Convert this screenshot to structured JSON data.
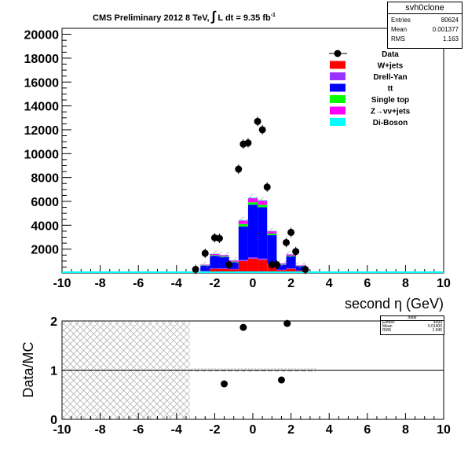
{
  "header": {
    "title_prefix": "CMS Preliminary 2012 8 TeV, ",
    "title_integral": "∫",
    "title_suffix": " L dt = 9.35 fb",
    "title_exponent": "-1"
  },
  "stats_top": {
    "name": "svh0clone",
    "rows": [
      {
        "label": "Entries",
        "value": "80624"
      },
      {
        "label": "Mean",
        "value": "0.001377"
      },
      {
        "label": "RMS",
        "value": "1.163"
      }
    ]
  },
  "stats_bottom": {
    "name": "dataf",
    "rows": [
      {
        "label": "Entries",
        "value": "4099"
      },
      {
        "label": "Mean",
        "value": "0.01400"
      },
      {
        "label": "RMS",
        "value": "1.945"
      }
    ]
  },
  "colors": {
    "wjets": "#ff0000",
    "drellyan": "#9933ff",
    "ttbar": "#0000ff",
    "singletop": "#00ff00",
    "znunu": "#ff00ff",
    "diboson": "#00ffff",
    "data": "#000000",
    "hatch": "#bbbbbb"
  },
  "chart_data": [
    {
      "type": "bar",
      "stacked": true,
      "xlabel": "second η (GeV)",
      "ylabel": "",
      "xlim": [
        -10,
        10
      ],
      "ylim": [
        0,
        20500
      ],
      "xticks": [
        -10,
        -8,
        -6,
        -4,
        -2,
        0,
        2,
        4,
        6,
        8,
        10
      ],
      "yticks": [
        2000,
        4000,
        6000,
        8000,
        10000,
        12000,
        14000,
        16000,
        18000,
        20000
      ],
      "bin_centers": [
        -2.5,
        -2.0,
        -1.5,
        -1.0,
        -0.5,
        0.0,
        0.5,
        1.0,
        1.5,
        2.0,
        2.5
      ],
      "bin_width": 0.5,
      "series": [
        {
          "name": "W+jets",
          "color_key": "wjets",
          "values": [
            150,
            350,
            350,
            300,
            1000,
            1200,
            1100,
            700,
            250,
            350,
            200
          ]
        },
        {
          "name": "Drell-Yan",
          "color_key": "drellyan",
          "values": [
            20,
            40,
            40,
            40,
            100,
            120,
            110,
            70,
            30,
            40,
            20
          ]
        },
        {
          "name": "t#bar{t}",
          "label_text": "tt",
          "color_key": "ttbar",
          "values": [
            450,
            1050,
            950,
            550,
            2800,
            4400,
            4300,
            2400,
            400,
            1000,
            350
          ]
        },
        {
          "name": "Single top",
          "color_key": "singletop",
          "values": [
            30,
            60,
            60,
            60,
            200,
            200,
            200,
            130,
            40,
            60,
            30
          ]
        },
        {
          "name": "Z→νν+jets",
          "label_text": "Z→νν+jets",
          "color_key": "znunu",
          "values": [
            40,
            100,
            100,
            100,
            300,
            350,
            350,
            200,
            80,
            100,
            40
          ]
        },
        {
          "name": "Di-Boson",
          "color_key": "diboson",
          "values": [
            10,
            20,
            20,
            20,
            40,
            50,
            50,
            30,
            20,
            20,
            10
          ]
        }
      ],
      "data": {
        "name": "Data",
        "x": [
          -3.0,
          -2.5,
          -2.0,
          -1.75,
          -1.25,
          -0.75,
          -0.5,
          -0.25,
          0.25,
          0.5,
          0.75,
          1.0,
          1.25,
          1.75,
          2.0,
          2.25,
          2.75
        ],
        "y": [
          300,
          1650,
          2950,
          2900,
          700,
          8700,
          10800,
          10900,
          12700,
          12000,
          7200,
          700,
          700,
          2550,
          3400,
          1800,
          300
        ]
      },
      "legend": {
        "position": "top-right"
      }
    },
    {
      "type": "scatter",
      "xlabel": "",
      "ylabel": "Data/MC",
      "xlim": [
        -10,
        10
      ],
      "ylim": [
        0,
        2
      ],
      "xticks": [
        -10,
        -8,
        -6,
        -4,
        -2,
        0,
        2,
        4,
        6,
        8,
        10
      ],
      "yticks": [
        0,
        1,
        2
      ],
      "reference_line": 1,
      "points": {
        "x": [
          -1.5,
          -0.5,
          1.5,
          1.8
        ],
        "y": [
          0.72,
          1.87,
          0.8,
          1.95
        ]
      },
      "uncertainty_band": [
        {
          "x0": -10,
          "x1": -3.3,
          "y0": 0,
          "y1": 2
        },
        {
          "x0": -3.3,
          "x1": 3.3,
          "y0": 0.96,
          "y1": 1.04
        }
      ]
    }
  ]
}
